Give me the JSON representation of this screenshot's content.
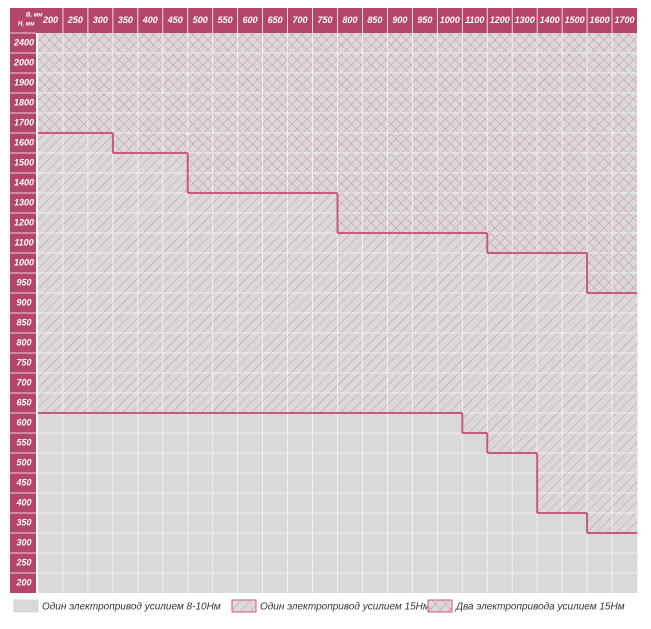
{
  "chart_data": {
    "type": "region-grid",
    "x_label": "B, мм",
    "y_label": "H, мм",
    "categories": [
      200,
      250,
      300,
      350,
      400,
      450,
      500,
      550,
      600,
      650,
      700,
      750,
      800,
      850,
      900,
      950,
      1000,
      1100,
      1200,
      1300,
      1400,
      1500,
      1600,
      1700
    ],
    "rows": [
      2400,
      2000,
      1900,
      1800,
      1700,
      1600,
      1500,
      1400,
      1300,
      1200,
      1100,
      1000,
      950,
      900,
      850,
      800,
      750,
      700,
      650,
      600,
      550,
      500,
      450,
      400,
      350,
      300,
      250,
      200
    ],
    "series": [
      {
        "name": "Один электропривод усилием 8-10Нм",
        "color": "#d9d9d9",
        "values": [
          600,
          600,
          600,
          600,
          600,
          600,
          600,
          600,
          600,
          600,
          600,
          600,
          600,
          600,
          600,
          600,
          600,
          550,
          500,
          500,
          350,
          350,
          300,
          300
        ]
      },
      {
        "name": "Один электропривод усилием 15Нм",
        "color": "#c85a7d",
        "values": [
          1600,
          1600,
          1600,
          1500,
          1500,
          1500,
          1300,
          1300,
          1300,
          1300,
          1300,
          1300,
          1100,
          1100,
          1100,
          1100,
          1100,
          1100,
          1000,
          1000,
          1000,
          1000,
          900,
          900
        ]
      },
      {
        "name": "Два электропривода усилием 15Нм",
        "color": "#c85a7d"
      }
    ],
    "header_color": "#b5466b"
  }
}
